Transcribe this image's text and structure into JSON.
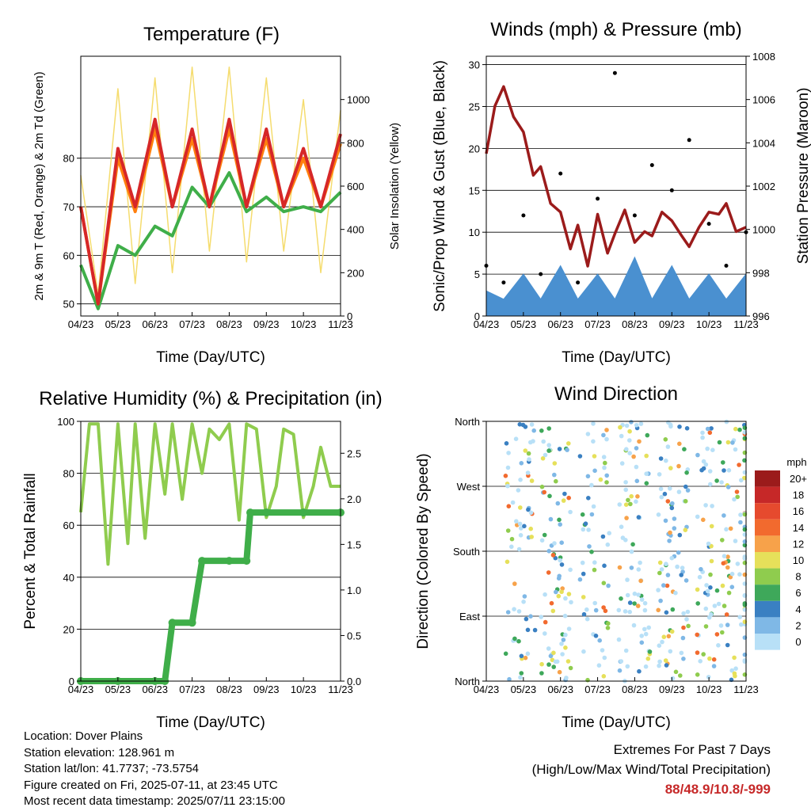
{
  "x_ticks": [
    "04/23",
    "05/23",
    "06/23",
    "07/23",
    "08/23",
    "09/23",
    "10/23",
    "11/23"
  ],
  "chart_data": [
    {
      "type": "line",
      "title": "Temperature (F)",
      "xlabel": "Time (Day/UTC)",
      "ylabel": "2m & 9m T (Red, Orange) & 2m Td (Green)",
      "ylabel_right": "Solar Insolation (Yellow)",
      "x_range": [
        "04/23",
        "11/23"
      ],
      "ylim": [
        47.5,
        101
      ],
      "ylim_right": [
        0,
        1200
      ],
      "yticks": [
        50,
        60,
        70,
        80
      ],
      "yticks_right": [
        0,
        200,
        400,
        600,
        800,
        1000
      ],
      "grid": true,
      "series": [
        {
          "color": "#d62728",
          "x": [
            "04/23",
            "05/07",
            "05/23",
            "06/07",
            "06/23",
            "07/07",
            "07/23",
            "08/07",
            "08/23",
            "09/07",
            "09/23",
            "10/07",
            "10/23",
            "11/07",
            "11/23"
          ],
          "y": [
            70,
            50,
            82,
            70,
            88,
            70,
            86,
            70,
            88,
            70,
            86,
            70,
            82,
            70,
            85
          ]
        },
        {
          "color": "#ff7f0e",
          "x": [
            "04/23",
            "05/07",
            "05/23",
            "06/07",
            "06/23",
            "07/07",
            "07/23",
            "08/07",
            "08/23",
            "09/07",
            "09/23",
            "10/07",
            "10/23",
            "11/07",
            "11/23"
          ],
          "y": [
            70,
            50,
            80,
            69,
            86,
            70,
            84,
            70,
            86,
            70,
            84,
            70,
            80,
            70,
            83
          ]
        },
        {
          "color": "#3fae49",
          "x": [
            "04/23",
            "05/07",
            "05/23",
            "06/07",
            "06/23",
            "07/07",
            "07/23",
            "08/07",
            "08/23",
            "09/07",
            "09/23",
            "10/07",
            "10/23",
            "11/07",
            "11/23"
          ],
          "y": [
            58,
            49,
            62,
            60,
            66,
            64,
            74,
            70,
            77,
            69,
            72,
            69,
            70,
            69,
            73
          ]
        },
        {
          "color": "#f5dc6e",
          "x": [
            "04/23",
            "05/07",
            "05/23",
            "06/07",
            "06/23",
            "07/07",
            "07/23",
            "08/07",
            "08/23",
            "09/07",
            "09/23",
            "10/07",
            "10/23",
            "11/07",
            "11/23"
          ],
          "y": [
            650,
            100,
            1050,
            150,
            1100,
            200,
            1150,
            300,
            1150,
            250,
            1100,
            300,
            1000,
            200,
            950
          ]
        }
      ]
    },
    {
      "type": "scatter",
      "title": "Winds (mph) & Pressure (mb)",
      "xlabel": "Time (Day/UTC)",
      "ylabel": "Sonic/Prop Wind & Gust (Blue, Black)",
      "ylabel_right": "Station Pressure (Maroon)",
      "x_range": [
        "04/23",
        "11/23"
      ],
      "ylim": [
        0,
        31
      ],
      "ylim_right": [
        996,
        1008
      ],
      "yticks": [
        0,
        5,
        10,
        15,
        20,
        25,
        30
      ],
      "yticks_right": [
        996,
        998,
        1000,
        1002,
        1004,
        1006,
        1008
      ],
      "grid": true,
      "series": [
        {
          "color": "#4a90d0",
          "x": [
            "04/23",
            "05/07",
            "05/23",
            "06/07",
            "06/23",
            "07/07",
            "07/23",
            "08/07",
            "08/23",
            "09/07",
            "09/23",
            "10/07",
            "10/23",
            "11/07",
            "11/23"
          ],
          "y": [
            3,
            2,
            5,
            2,
            6,
            2,
            5,
            2,
            7,
            2,
            6,
            2,
            5,
            2,
            5
          ]
        },
        {
          "color": "#000000",
          "x": [
            "04/23",
            "05/07",
            "05/23",
            "06/07",
            "06/23",
            "07/07",
            "07/23",
            "08/07",
            "08/23",
            "09/07",
            "09/23",
            "10/07",
            "10/23",
            "11/07",
            "11/23"
          ],
          "y": [
            6,
            4,
            12,
            5,
            17,
            4,
            14,
            29,
            12,
            18,
            15,
            21,
            11,
            6,
            10
          ]
        },
        {
          "color": "#9b1b1b",
          "x": [
            "04/23",
            "04/30",
            "05/07",
            "05/15",
            "05/23",
            "06/01",
            "06/07",
            "06/15",
            "06/23",
            "07/01",
            "07/07",
            "07/15",
            "07/23",
            "08/01",
            "08/07",
            "08/15",
            "08/23",
            "09/01",
            "09/07",
            "09/15",
            "09/23",
            "10/01",
            "10/07",
            "10/15",
            "10/23",
            "11/01",
            "11/07",
            "11/15",
            "11/23"
          ],
          "y": [
            1003.5,
            1005.7,
            1006.6,
            1005.2,
            1004.5,
            1002.5,
            1002.9,
            1001.2,
            1000.8,
            999.1,
            1000.2,
            998.3,
            1000.7,
            998.9,
            999.8,
            1000.9,
            999.4,
            999.9,
            999.7,
            1000.8,
            1000.4,
            999.7,
            999.2,
            1000.1,
            1000.8,
            1000.7,
            1001.2,
            999.9,
            1000.1
          ]
        }
      ]
    },
    {
      "type": "line",
      "title": "Relative Humidity (%) & Precipitation (in)",
      "xlabel": "Time (Day/UTC)",
      "ylabel": "Percent & Total Rainfall",
      "x_range": [
        "04/23",
        "11/23"
      ],
      "ylim": [
        0,
        100
      ],
      "ylim_right": [
        0,
        2.85
      ],
      "yticks": [
        0,
        20,
        40,
        60,
        80,
        100
      ],
      "yticks_right": [
        "0.0",
        "0.5",
        "1.0",
        "1.5",
        "2.0",
        "2.5"
      ],
      "grid": true,
      "series": [
        {
          "color": "#8fcc4e",
          "x": [
            "04/23",
            "04/30",
            "05/07",
            "05/15",
            "05/23",
            "06/01",
            "06/07",
            "06/15",
            "06/23",
            "07/01",
            "07/07",
            "07/15",
            "07/23",
            "08/01",
            "08/07",
            "08/15",
            "08/23",
            "09/01",
            "09/07",
            "09/15",
            "09/23",
            "10/01",
            "10/07",
            "10/15",
            "10/23",
            "11/01",
            "11/07",
            "11/15",
            "11/23"
          ],
          "y": [
            65,
            99,
            99,
            45,
            99,
            53,
            99,
            55,
            99,
            72,
            99,
            70,
            99,
            80,
            97,
            93,
            99,
            62,
            99,
            97,
            63,
            75,
            97,
            95,
            63,
            75,
            90,
            75,
            75
          ]
        },
        {
          "color": "#3fae49",
          "x": [
            "04/23",
            "05/23",
            "06/23",
            "07/01",
            "07/07",
            "07/23",
            "08/01",
            "08/23",
            "09/07",
            "09/10",
            "09/23",
            "10/23",
            "11/23"
          ],
          "y": [
            0,
            0,
            0,
            0.0,
            0.64,
            0.64,
            1.32,
            1.32,
            1.32,
            1.85,
            1.85,
            1.85,
            1.85
          ]
        }
      ]
    },
    {
      "type": "scatter",
      "title": "Wind Direction",
      "xlabel": "Time (Day/UTC)",
      "ylabel": "Direction (Colored By Speed)",
      "x_range": [
        "04/23",
        "11/23"
      ],
      "yticks": [
        "North",
        "East",
        "South",
        "West",
        "North"
      ],
      "grid": true,
      "colorbar": {
        "title": "mph",
        "labels": [
          "20+",
          "18",
          "16",
          "14",
          "12",
          "10",
          "8",
          "6",
          "4",
          "2",
          "0"
        ],
        "colors": [
          "#9b1b1b",
          "#c62828",
          "#e64a2e",
          "#f26a2e",
          "#f7a24a",
          "#e6e05a",
          "#8fcc4e",
          "#3ea85a",
          "#3a80c2",
          "#7fb8e6",
          "#b8e0f7"
        ]
      }
    }
  ],
  "info": {
    "location": "Location: Dover Plains",
    "elevation": "Station elevation: 128.961 m",
    "latlon": "Station lat/lon: 41.7737; -73.5754",
    "created": "Figure created on Fri, 2025-07-11, at 23:45 UTC",
    "timestamp": "Most recent data timestamp: 2025/07/11 23:15:00"
  },
  "extremes": {
    "title": "Extremes For Past 7 Days",
    "subtitle": "(High/Low/Max Wind/Total Precipitation)",
    "values": "88/48.9/10.8/-999"
  }
}
